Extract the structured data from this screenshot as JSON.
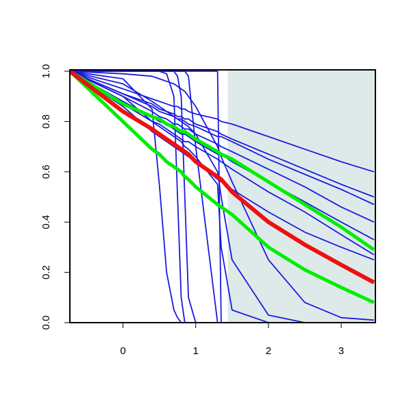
{
  "chart_data": {
    "type": "line",
    "x": [
      -0.73,
      0,
      0.4,
      0.5,
      0.6,
      0.7,
      0.75,
      0.8,
      0.85,
      0.9,
      1,
      1.3,
      1.35,
      1.5,
      2,
      2.5,
      3,
      3.45
    ],
    "xlim": [
      -0.73,
      3.47
    ],
    "ylim": [
      0,
      1
    ],
    "xticks": [
      0,
      1,
      2,
      3
    ],
    "yticks": [
      {
        "value": 0,
        "label": "0.0"
      },
      {
        "value": 0.2,
        "label": "0.2"
      },
      {
        "value": 0.4,
        "label": "0.4"
      },
      {
        "value": 0.6,
        "label": "0.6"
      },
      {
        "value": 0.8,
        "label": "0.8"
      },
      {
        "value": 1,
        "label": "1.0"
      }
    ],
    "shaded_x": [
      1.44,
      3.47
    ],
    "shade_color": "#deeaea",
    "series": [
      {
        "color": "#1a1adf",
        "width": 1.8,
        "values": [
          1,
          0.93,
          0.89,
          0.88,
          0.87,
          0.86,
          0.86,
          0.85,
          0.85,
          0.84,
          0.83,
          0.81,
          0.8,
          0.79,
          0.74,
          0.69,
          0.64,
          0.6
        ]
      },
      {
        "color": "#1a1adf",
        "width": 1.8,
        "values": [
          1,
          0.91,
          0.87,
          0.85,
          0.84,
          0.83,
          0.82,
          0.82,
          0.81,
          0.81,
          0.79,
          0.76,
          0.75,
          0.73,
          0.67,
          0.61,
          0.55,
          0.5
        ]
      },
      {
        "color": "#1a1adf",
        "width": 1.8,
        "values": [
          1,
          0.91,
          0.86,
          0.84,
          0.83,
          0.82,
          0.81,
          0.81,
          0.8,
          0.79,
          0.78,
          0.74,
          0.74,
          0.72,
          0.65,
          0.59,
          0.53,
          0.47
        ]
      },
      {
        "color": "#1a1adf",
        "width": 1.8,
        "values": [
          1,
          0.9,
          0.84,
          0.82,
          0.81,
          0.79,
          0.79,
          0.78,
          0.77,
          0.77,
          0.75,
          0.71,
          0.7,
          0.68,
          0.61,
          0.54,
          0.46,
          0.4
        ]
      },
      {
        "color": "#1a1adf",
        "width": 1.8,
        "values": [
          1,
          0.88,
          0.82,
          0.8,
          0.79,
          0.77,
          0.76,
          0.75,
          0.75,
          0.74,
          0.72,
          0.67,
          0.67,
          0.64,
          0.56,
          0.48,
          0.4,
          0.33
        ]
      },
      {
        "color": "#1a1adf",
        "width": 1.8,
        "values": [
          1,
          0.87,
          0.8,
          0.79,
          0.77,
          0.75,
          0.74,
          0.73,
          0.72,
          0.72,
          0.7,
          0.65,
          0.64,
          0.61,
          0.52,
          0.44,
          0.35,
          0.27
        ]
      },
      {
        "color": "#1a1adf",
        "width": 1.8,
        "values": [
          1,
          0.86,
          0.76,
          0.74,
          0.72,
          0.7,
          0.69,
          0.68,
          0.67,
          0.66,
          0.64,
          0.57,
          0.56,
          0.53,
          0.44,
          0.36,
          0.3,
          0.25
        ]
      },
      {
        "color": "#1a1adf",
        "width": 1.8,
        "values": [
          1,
          0.97,
          0.85,
          0.55,
          0.2,
          0.05,
          0.02,
          0,
          0,
          0,
          0,
          0,
          0,
          0,
          0,
          0,
          0,
          0
        ]
      },
      {
        "color": "#1a1adf",
        "width": 1.8,
        "values": [
          1,
          1,
          1,
          1,
          0.99,
          0.9,
          0.5,
          0.1,
          0,
          0,
          0,
          0,
          0,
          0,
          0,
          0,
          0,
          0
        ]
      },
      {
        "color": "#1a1adf",
        "width": 1.8,
        "values": [
          1,
          1,
          1,
          1,
          1,
          1,
          0.98,
          0.9,
          0.5,
          0.1,
          0,
          0,
          0,
          0,
          0,
          0,
          0,
          0
        ]
      },
      {
        "color": "#1a1adf",
        "width": 1.8,
        "values": [
          1,
          1,
          1,
          1,
          1,
          1,
          1,
          1,
          1,
          0.98,
          0.7,
          0,
          0,
          0,
          0,
          0,
          0,
          0
        ]
      },
      {
        "color": "#1a1adf",
        "width": 1.8,
        "values": [
          1,
          1,
          1,
          1,
          1,
          1,
          1,
          1,
          1,
          1,
          1,
          1,
          0,
          0,
          0,
          0,
          0,
          0
        ]
      },
      {
        "color": "#1a1adf",
        "width": 1.8,
        "values": [
          1,
          0.9,
          0.8,
          0.78,
          0.76,
          0.74,
          0.73,
          0.72,
          0.7,
          0.69,
          0.66,
          0.55,
          0.3,
          0.05,
          0,
          0,
          0,
          0
        ]
      },
      {
        "color": "#1a1adf",
        "width": 1.8,
        "values": [
          1,
          0.99,
          0.98,
          0.97,
          0.96,
          0.95,
          0.94,
          0.93,
          0.92,
          0.9,
          0.86,
          0.7,
          0.66,
          0.56,
          0.25,
          0.08,
          0.02,
          0.01
        ]
      },
      {
        "color": "#1a1adf",
        "width": 1.8,
        "values": [
          1,
          0.95,
          0.88,
          0.86,
          0.84,
          0.82,
          0.81,
          0.8,
          0.79,
          0.78,
          0.75,
          0.6,
          0.5,
          0.25,
          0.03,
          0,
          0,
          0
        ]
      },
      {
        "color": "#00ee00",
        "width": 5,
        "values": [
          1,
          0.87,
          0.82,
          0.81,
          0.79,
          0.78,
          0.77,
          0.76,
          0.76,
          0.75,
          0.73,
          0.68,
          0.67,
          0.65,
          0.56,
          0.47,
          0.38,
          0.29
        ]
      },
      {
        "color": "#00ee00",
        "width": 5,
        "values": [
          1,
          0.8,
          0.69,
          0.67,
          0.64,
          0.62,
          0.61,
          0.6,
          0.58,
          0.57,
          0.54,
          0.47,
          0.46,
          0.43,
          0.3,
          0.21,
          0.14,
          0.08
        ]
      },
      {
        "color": "#ee1111",
        "width": 6,
        "values": [
          1,
          0.84,
          0.77,
          0.75,
          0.73,
          0.71,
          0.7,
          0.69,
          0.68,
          0.67,
          0.64,
          0.58,
          0.57,
          0.52,
          0.4,
          0.31,
          0.23,
          0.16
        ]
      }
    ]
  }
}
